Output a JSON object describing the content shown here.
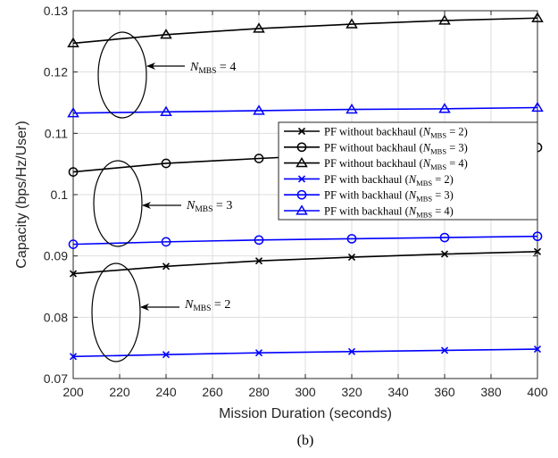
{
  "chart_data": {
    "type": "line",
    "xlabel": "Mission Duration (seconds)",
    "ylabel": "Capacity (bps/Hz/User)",
    "xlim": [
      200,
      400
    ],
    "ylim": [
      0.07,
      0.13
    ],
    "xticks": [
      200,
      220,
      240,
      260,
      280,
      300,
      320,
      340,
      360,
      380,
      400
    ],
    "yticks": [
      0.07,
      0.08,
      0.09,
      0.1,
      0.11,
      0.12,
      0.13
    ],
    "xtick_labels": [
      "200",
      "220",
      "240",
      "260",
      "280",
      "300",
      "320",
      "340",
      "360",
      "380",
      "400"
    ],
    "ytick_labels": [
      "0.07",
      "0.08",
      "0.09",
      "0.1",
      "0.11",
      "0.12",
      "0.13"
    ],
    "grid": true,
    "legend_position": "right",
    "x": [
      200,
      240,
      280,
      320,
      360,
      400
    ],
    "series": [
      {
        "name": "PF without backhaul (N_MBS = 2)",
        "legend_prefix": "PF without backhaul (",
        "legend_n": "2",
        "color": "#000000",
        "marker": "x",
        "values": [
          0.0871,
          0.0883,
          0.0892,
          0.0898,
          0.0903,
          0.0907
        ]
      },
      {
        "name": "PF without backhaul (N_MBS = 3)",
        "legend_prefix": "PF without backhaul (",
        "legend_n": "3",
        "color": "#000000",
        "marker": "o",
        "values": [
          0.1037,
          0.1051,
          0.1059,
          0.1066,
          0.1072,
          0.1077
        ]
      },
      {
        "name": "PF without backhaul (N_MBS = 4)",
        "legend_prefix": "PF without backhaul (",
        "legend_n": "4",
        "color": "#000000",
        "marker": "^",
        "values": [
          0.1247,
          0.1261,
          0.1271,
          0.1278,
          0.1284,
          0.1288
        ]
      },
      {
        "name": "PF with backhaul (N_MBS = 2)",
        "legend_prefix": "PF with backhaul (",
        "legend_n": "2",
        "color": "#0000ff",
        "marker": "x",
        "values": [
          0.0736,
          0.0739,
          0.0742,
          0.0744,
          0.0746,
          0.0748
        ]
      },
      {
        "name": "PF with backhaul (N_MBS = 3)",
        "legend_prefix": "PF with backhaul (",
        "legend_n": "3",
        "color": "#0000ff",
        "marker": "o",
        "values": [
          0.0919,
          0.0923,
          0.0926,
          0.0928,
          0.093,
          0.0932
        ]
      },
      {
        "name": "PF with backhaul (N_MBS = 4)",
        "legend_prefix": "PF with backhaul (",
        "legend_n": "4",
        "color": "#0000ff",
        "marker": "^",
        "values": [
          0.1133,
          0.1135,
          0.1137,
          0.1139,
          0.114,
          0.1142
        ]
      }
    ],
    "annotations": [
      {
        "label_prefix": "N",
        "label_sub": "MBS",
        "label_suffix": " = 4"
      },
      {
        "label_prefix": "N",
        "label_sub": "MBS",
        "label_suffix": " = 3"
      },
      {
        "label_prefix": "N",
        "label_sub": "MBS",
        "label_suffix": " = 2"
      }
    ]
  },
  "caption": "(b)"
}
